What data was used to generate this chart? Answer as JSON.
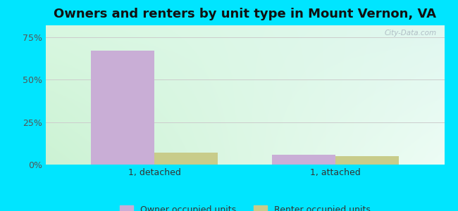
{
  "title": "Owners and renters by unit type in Mount Vernon, VA",
  "categories": [
    "1, detached",
    "1, attached"
  ],
  "owner_values": [
    67.0,
    6.0
  ],
  "renter_values": [
    7.0,
    5.0
  ],
  "owner_color": "#c9aed6",
  "renter_color": "#c8cc8a",
  "yticks": [
    0,
    25,
    50,
    75
  ],
  "ytick_labels": [
    "0%",
    "25%",
    "50%",
    "75%"
  ],
  "ylim": [
    0,
    82
  ],
  "bar_width": 0.35,
  "outer_bg": "#00e5ff",
  "watermark": "City-Data.com",
  "legend_owner": "Owner occupied units",
  "legend_renter": "Renter occupied units",
  "title_fontsize": 13,
  "tick_fontsize": 9,
  "legend_fontsize": 9,
  "bg_topleft": [
    0.85,
    0.97,
    0.88
  ],
  "bg_topright": [
    0.88,
    0.97,
    0.94
  ],
  "bg_bottomleft": [
    0.8,
    0.95,
    0.83
  ],
  "bg_bottomright": [
    0.93,
    0.99,
    0.96
  ]
}
